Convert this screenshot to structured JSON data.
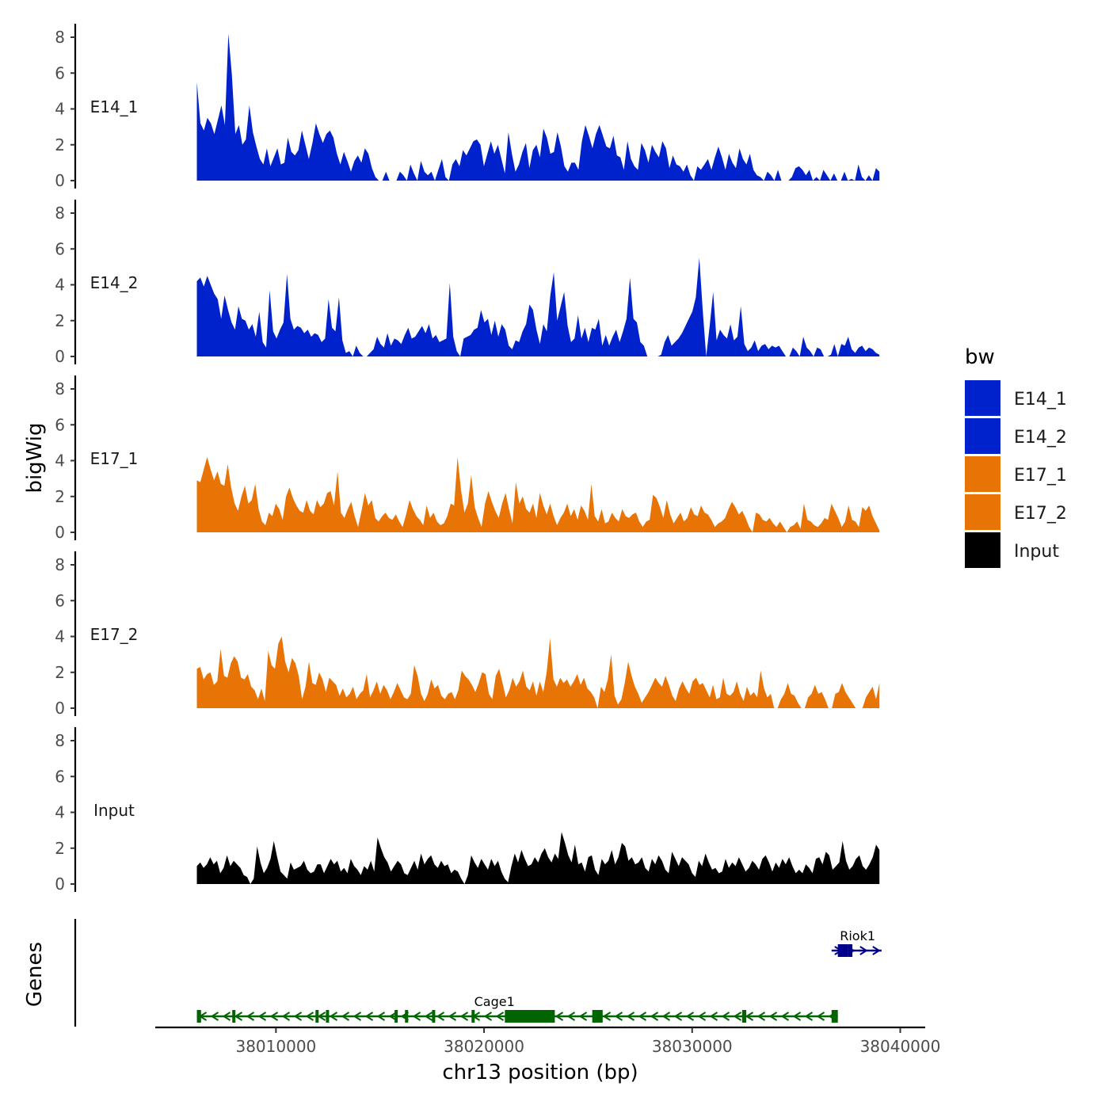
{
  "chart_data": {
    "type": "area",
    "chromosome": "chr13",
    "xlabel": "chr13 position (bp)",
    "ylabel": "bigWig",
    "genes_label": "Genes",
    "xlim": [
      38004200,
      38041200
    ],
    "x_range_data": [
      38006200,
      38039000
    ],
    "ylim": [
      0,
      8.4
    ],
    "y_ticks": [
      0,
      2,
      4,
      6,
      8
    ],
    "x_ticks": [
      38010000,
      38020000,
      38030000,
      38040000
    ],
    "x_tick_labels": [
      "38010000",
      "38020000",
      "38030000",
      "38040000"
    ],
    "legend": {
      "title": "bw",
      "entries": [
        {
          "name": "E14_1",
          "color": "#0022cc"
        },
        {
          "name": "E14_2",
          "color": "#0022cc"
        },
        {
          "name": "E17_1",
          "color": "#e87405"
        },
        {
          "name": "E17_2",
          "color": "#e87405"
        },
        {
          "name": "Input",
          "color": "#000000"
        }
      ]
    },
    "series": [
      {
        "name": "E14_1",
        "color": "#0022cc",
        "values": [
          5.5,
          3.2,
          2.8,
          3.5,
          3.2,
          2.6,
          3.4,
          4.2,
          3.1,
          8.2,
          5.9,
          2.6,
          3.1,
          2.0,
          2.3,
          4.2,
          2.7,
          1.9,
          1.2,
          0.9,
          1.8,
          0.8,
          1.3,
          1.8,
          0.9,
          1.0,
          2.4,
          1.6,
          1.4,
          1.7,
          2.8,
          2.0,
          1.2,
          2.1,
          3.2,
          2.6,
          2.1,
          2.6,
          2.8,
          2.4,
          1.5,
          0.9,
          1.6,
          1.1,
          0.5,
          1.1,
          1.4,
          1.0,
          1.8,
          1.5,
          0.7,
          0.2,
          0.0,
          0.0,
          0.5,
          0.0,
          0.0,
          0.0,
          0.5,
          0.3,
          0.0,
          0.9,
          0.4,
          0.0,
          1.1,
          0.5,
          0.3,
          0.5,
          0.0,
          0.6,
          1.2,
          0.2,
          0.0,
          0.9,
          1.2,
          0.8,
          1.7,
          1.4,
          1.8,
          2.2,
          2.3,
          2.0,
          0.8,
          1.5,
          2.2,
          1.5,
          2.0,
          1.2,
          0.4,
          2.7,
          1.5,
          0.5,
          0.9,
          1.6,
          2.1,
          0.7,
          1.7,
          2.0,
          1.3,
          2.9,
          2.4,
          1.5,
          1.6,
          2.7,
          1.9,
          0.8,
          0.5,
          1.0,
          1.0,
          0.6,
          2.2,
          3.1,
          2.5,
          1.8,
          2.6,
          3.1,
          2.5,
          1.9,
          1.8,
          2.5,
          1.4,
          1.3,
          0.6,
          2.2,
          1.2,
          0.8,
          0.6,
          2.1,
          1.7,
          1.0,
          2.0,
          1.6,
          1.3,
          2.2,
          1.8,
          0.7,
          1.4,
          0.9,
          0.8,
          0.5,
          0.9,
          0.3,
          0.0,
          0.8,
          0.6,
          0.9,
          1.2,
          0.6,
          1.3,
          1.9,
          1.3,
          0.6,
          1.5,
          1.0,
          0.7,
          1.8,
          1.2,
          0.9,
          1.5,
          0.6,
          0.3,
          0.2,
          0.0,
          0.5,
          0.3,
          0.0,
          0.6,
          0.0,
          0.0,
          0.0,
          0.2,
          0.7,
          0.8,
          0.6,
          0.3,
          0.6,
          0.0,
          0.2,
          0.0,
          0.6,
          0.3,
          0.0,
          0.4,
          0.0,
          0.0,
          0.5,
          0.0,
          0.1,
          0.0,
          0.9,
          0.2,
          0.0,
          0.3,
          0.0,
          0.7,
          0.5
        ]
      },
      {
        "name": "E14_2",
        "color": "#0022cc",
        "values": [
          4.2,
          4.4,
          3.9,
          4.5,
          4.0,
          3.5,
          3.2,
          2.1,
          3.4,
          2.6,
          1.9,
          1.5,
          2.8,
          2.1,
          2.0,
          1.5,
          1.8,
          1.1,
          2.5,
          0.8,
          0.5,
          3.7,
          1.4,
          1.0,
          1.5,
          1.9,
          4.6,
          2.1,
          1.5,
          1.7,
          1.6,
          1.3,
          1.5,
          1.1,
          1.3,
          1.2,
          0.8,
          1.0,
          3.2,
          1.6,
          1.4,
          3.3,
          0.9,
          0.2,
          0.3,
          0.0,
          0.6,
          0.2,
          0.0,
          0.0,
          0.2,
          0.4,
          1.1,
          0.7,
          0.5,
          1.3,
          0.6,
          1.0,
          0.9,
          0.7,
          1.2,
          1.6,
          1.0,
          1.1,
          1.4,
          1.7,
          1.3,
          1.8,
          1.0,
          1.2,
          0.8,
          0.9,
          1.0,
          4.1,
          1.1,
          0.3,
          0.0,
          1.0,
          1.1,
          1.2,
          1.5,
          1.6,
          2.6,
          1.9,
          2.1,
          1.2,
          2.0,
          1.1,
          1.8,
          1.5,
          0.6,
          0.4,
          0.9,
          0.8,
          1.4,
          1.8,
          2.9,
          2.6,
          1.5,
          0.7,
          1.8,
          1.4,
          3.4,
          4.7,
          2.0,
          2.8,
          3.6,
          1.7,
          0.8,
          1.0,
          2.3,
          1.0,
          1.6,
          0.8,
          1.6,
          1.5,
          2.1,
          0.6,
          1.2,
          0.6,
          1.1,
          1.5,
          0.8,
          1.4,
          2.1,
          4.4,
          2.1,
          1.9,
          0.8,
          0.6,
          0.0,
          0.0,
          0.0,
          0.0,
          0.1,
          0.8,
          1.2,
          0.6,
          0.8,
          1.0,
          1.3,
          1.7,
          2.1,
          2.5,
          3.3,
          5.5,
          2.6,
          0.0,
          1.7,
          3.6,
          0.9,
          1.5,
          1.2,
          1.0,
          1.8,
          0.9,
          1.1,
          2.8,
          0.7,
          0.3,
          0.5,
          0.9,
          0.3,
          0.6,
          0.7,
          0.4,
          0.6,
          0.5,
          0.6,
          0.3,
          0.0,
          0.0,
          0.5,
          0.3,
          0.0,
          1.1,
          0.5,
          0.3,
          0.0,
          0.5,
          0.4,
          0.0,
          0.0,
          0.1,
          0.7,
          0.0,
          0.7,
          0.6,
          1.1,
          0.4,
          0.2,
          0.5,
          0.6,
          0.3,
          0.5,
          0.4,
          0.2,
          0.1
        ]
      },
      {
        "name": "E17_1",
        "color": "#e87405",
        "values": [
          2.9,
          2.8,
          3.5,
          4.2,
          3.5,
          2.9,
          3.4,
          2.7,
          2.6,
          3.8,
          2.5,
          1.6,
          1.2,
          2.0,
          2.6,
          1.6,
          1.8,
          2.7,
          1.3,
          0.6,
          0.4,
          1.1,
          0.9,
          1.6,
          1.3,
          0.7,
          2.0,
          2.5,
          1.9,
          1.5,
          1.2,
          1.1,
          1.8,
          1.2,
          1.0,
          1.8,
          1.4,
          1.6,
          2.2,
          2.3,
          1.5,
          3.4,
          1.1,
          0.8,
          1.3,
          1.7,
          0.9,
          0.3,
          1.2,
          2.2,
          1.5,
          1.8,
          0.8,
          0.6,
          0.9,
          1.1,
          0.8,
          0.7,
          1.0,
          0.6,
          0.3,
          1.0,
          1.8,
          1.3,
          0.9,
          0.7,
          0.4,
          1.5,
          0.8,
          1.1,
          0.6,
          0.4,
          0.5,
          0.9,
          1.6,
          1.5,
          4.2,
          2.4,
          1.1,
          1.6,
          3.2,
          1.4,
          0.8,
          0.3,
          1.6,
          2.3,
          1.7,
          1.2,
          0.8,
          1.6,
          2.2,
          1.3,
          0.5,
          2.8,
          1.6,
          2.0,
          1.3,
          1.1,
          1.6,
          0.8,
          2.2,
          1.5,
          1.0,
          1.6,
          0.9,
          0.4,
          0.8,
          1.1,
          1.6,
          0.9,
          1.3,
          0.7,
          1.5,
          1.2,
          0.7,
          2.7,
          0.9,
          0.6,
          1.3,
          0.5,
          0.6,
          1.1,
          0.8,
          0.6,
          1.3,
          0.9,
          0.8,
          1.0,
          1.1,
          0.6,
          0.3,
          0.6,
          0.7,
          2.1,
          1.9,
          1.4,
          0.8,
          1.8,
          1.0,
          0.5,
          0.8,
          1.1,
          0.6,
          0.8,
          1.4,
          1.0,
          0.9,
          1.5,
          1.1,
          1.0,
          0.7,
          0.3,
          0.5,
          0.6,
          0.8,
          1.3,
          1.7,
          1.4,
          1.0,
          1.2,
          0.8,
          0.3,
          0.0,
          1.1,
          1.0,
          0.7,
          0.6,
          0.8,
          0.5,
          0.3,
          0.6,
          0.3,
          0.0,
          0.3,
          0.4,
          0.6,
          0.2,
          1.6,
          0.7,
          0.6,
          0.4,
          0.3,
          0.5,
          0.8,
          0.7,
          1.6,
          1.2,
          0.8,
          0.3,
          0.6,
          1.5,
          0.7,
          0.6,
          0.3,
          1.4,
          1.2,
          1.5,
          0.9,
          0.5,
          0.1
        ]
      },
      {
        "name": "E17_2",
        "color": "#e87405",
        "values": [
          2.2,
          2.3,
          1.6,
          1.9,
          2.0,
          1.3,
          1.5,
          3.3,
          1.8,
          1.7,
          2.5,
          2.9,
          2.6,
          1.7,
          1.6,
          1.9,
          1.2,
          1.0,
          0.5,
          1.1,
          0.4,
          3.2,
          2.4,
          2.2,
          3.6,
          4.0,
          2.6,
          2.0,
          2.8,
          2.5,
          1.8,
          0.5,
          1.2,
          2.6,
          1.4,
          1.3,
          2.0,
          1.6,
          0.9,
          1.7,
          1.5,
          1.3,
          0.7,
          1.1,
          0.6,
          0.8,
          1.2,
          0.5,
          0.8,
          1.0,
          1.9,
          0.6,
          1.0,
          1.5,
          0.8,
          1.3,
          1.0,
          0.5,
          0.9,
          1.4,
          1.0,
          0.6,
          0.5,
          0.8,
          2.4,
          1.8,
          0.8,
          0.4,
          0.8,
          1.6,
          1.1,
          1.3,
          0.7,
          0.5,
          0.8,
          0.9,
          0.5,
          1.0,
          2.1,
          1.8,
          1.6,
          1.3,
          0.9,
          1.4,
          2.0,
          1.9,
          0.8,
          0.5,
          1.8,
          2.2,
          1.4,
          0.6,
          1.0,
          1.7,
          1.2,
          1.5,
          2.1,
          1.2,
          1.0,
          1.5,
          0.7,
          1.5,
          0.9,
          2.0,
          3.9,
          1.6,
          1.2,
          1.7,
          1.4,
          1.6,
          1.2,
          1.5,
          1.9,
          1.3,
          1.7,
          1.1,
          0.9,
          0.6,
          0.0,
          1.2,
          0.9,
          1.6,
          3.0,
          0.7,
          0.2,
          0.5,
          1.4,
          2.6,
          1.8,
          1.2,
          0.8,
          0.3,
          0.6,
          0.9,
          1.3,
          1.7,
          1.4,
          1.2,
          1.8,
          1.3,
          0.7,
          0.4,
          1.1,
          1.5,
          1.1,
          0.8,
          1.5,
          1.7,
          1.3,
          1.4,
          1.0,
          0.6,
          1.3,
          0.5,
          0.6,
          1.7,
          0.8,
          0.7,
          0.9,
          1.5,
          0.8,
          0.4,
          1.2,
          0.7,
          0.9,
          0.6,
          2.1,
          1.1,
          0.6,
          0.8,
          0.0,
          0.0,
          0.5,
          0.8,
          1.4,
          0.8,
          0.7,
          0.3,
          0.0,
          0.0,
          0.6,
          0.8,
          1.3,
          0.8,
          0.9,
          0.5,
          0.0,
          0.0,
          0.8,
          0.9,
          1.4,
          0.9,
          0.6,
          0.3,
          0.0,
          0.0,
          0.0,
          0.6,
          0.9,
          1.2,
          0.5,
          1.4
        ]
      },
      {
        "name": "Input",
        "color": "#000000",
        "values": [
          1.0,
          1.2,
          0.9,
          1.1,
          1.5,
          1.1,
          1.3,
          0.6,
          0.9,
          1.6,
          1.0,
          1.3,
          1.1,
          0.9,
          0.5,
          0.4,
          0.0,
          0.3,
          2.1,
          1.2,
          0.6,
          0.9,
          1.4,
          2.4,
          1.5,
          0.7,
          0.5,
          0.3,
          1.2,
          0.8,
          0.9,
          1.0,
          1.3,
          0.8,
          0.6,
          0.7,
          1.1,
          1.1,
          0.6,
          1.0,
          1.4,
          1.1,
          1.3,
          0.7,
          0.9,
          0.6,
          1.4,
          1.0,
          0.8,
          0.5,
          1.0,
          0.8,
          1.3,
          0.7,
          2.6,
          2.0,
          1.5,
          1.2,
          0.7,
          1.0,
          1.3,
          1.1,
          0.6,
          0.5,
          0.9,
          1.3,
          0.8,
          1.7,
          1.1,
          1.4,
          1.6,
          1.1,
          0.9,
          1.3,
          1.0,
          1.1,
          0.6,
          0.8,
          0.7,
          0.3,
          0.0,
          0.5,
          1.6,
          1.2,
          0.9,
          1.4,
          1.1,
          0.8,
          1.4,
          1.0,
          1.3,
          0.7,
          0.3,
          0.1,
          1.0,
          1.7,
          1.2,
          1.9,
          1.4,
          1.0,
          1.1,
          1.5,
          1.2,
          1.7,
          2.0,
          1.5,
          1.2,
          1.7,
          1.4,
          2.9,
          2.3,
          1.6,
          1.2,
          2.2,
          1.1,
          1.2,
          0.7,
          1.5,
          1.6,
          0.8,
          0.5,
          1.4,
          1.1,
          1.3,
          1.9,
          1.1,
          1.5,
          2.3,
          2.1,
          1.3,
          1.5,
          1.1,
          1.2,
          1.5,
          0.9,
          0.7,
          1.4,
          1.1,
          1.6,
          1.3,
          0.8,
          0.6,
          1.8,
          1.4,
          1.0,
          1.5,
          1.3,
          1.1,
          0.6,
          0.4,
          1.3,
          1.0,
          1.7,
          1.2,
          0.8,
          0.9,
          0.6,
          0.7,
          1.4,
          0.9,
          1.2,
          1.0,
          1.5,
          1.1,
          0.7,
          0.9,
          1.3,
          1.1,
          0.8,
          1.4,
          1.6,
          1.2,
          0.7,
          1.2,
          0.9,
          1.4,
          1.1,
          1.5,
          1.0,
          0.6,
          0.8,
          0.6,
          1.1,
          0.9,
          0.6,
          1.4,
          1.5,
          1.1,
          1.8,
          1.6,
          0.8,
          1.0,
          1.2,
          2.4,
          1.3,
          0.8,
          1.0,
          1.4,
          1.6,
          1.0,
          0.8,
          1.1,
          1.5,
          2.2,
          1.9
        ]
      }
    ],
    "genes": [
      {
        "name": "Cage1",
        "strand": "-",
        "color": "#006400",
        "start": 38006200,
        "end": 38037000,
        "exons": [
          [
            38006200,
            38006400
          ],
          [
            38007900,
            38008000
          ],
          [
            38011900,
            38012000
          ],
          [
            38012400,
            38012550
          ],
          [
            38015700,
            38015800
          ],
          [
            38016200,
            38016350
          ],
          [
            38017500,
            38017600
          ],
          [
            38019400,
            38019500
          ],
          [
            38021000,
            38023400
          ],
          [
            38025200,
            38025700
          ],
          [
            38032400,
            38032600
          ],
          [
            38036700,
            38037000
          ]
        ]
      },
      {
        "name": "Riok1",
        "strand": "+",
        "color": "#00008b",
        "start": 38036700,
        "end": 38039100,
        "exons": [
          [
            38037000,
            38037500
          ],
          [
            38037500,
            38037700
          ]
        ]
      }
    ]
  }
}
